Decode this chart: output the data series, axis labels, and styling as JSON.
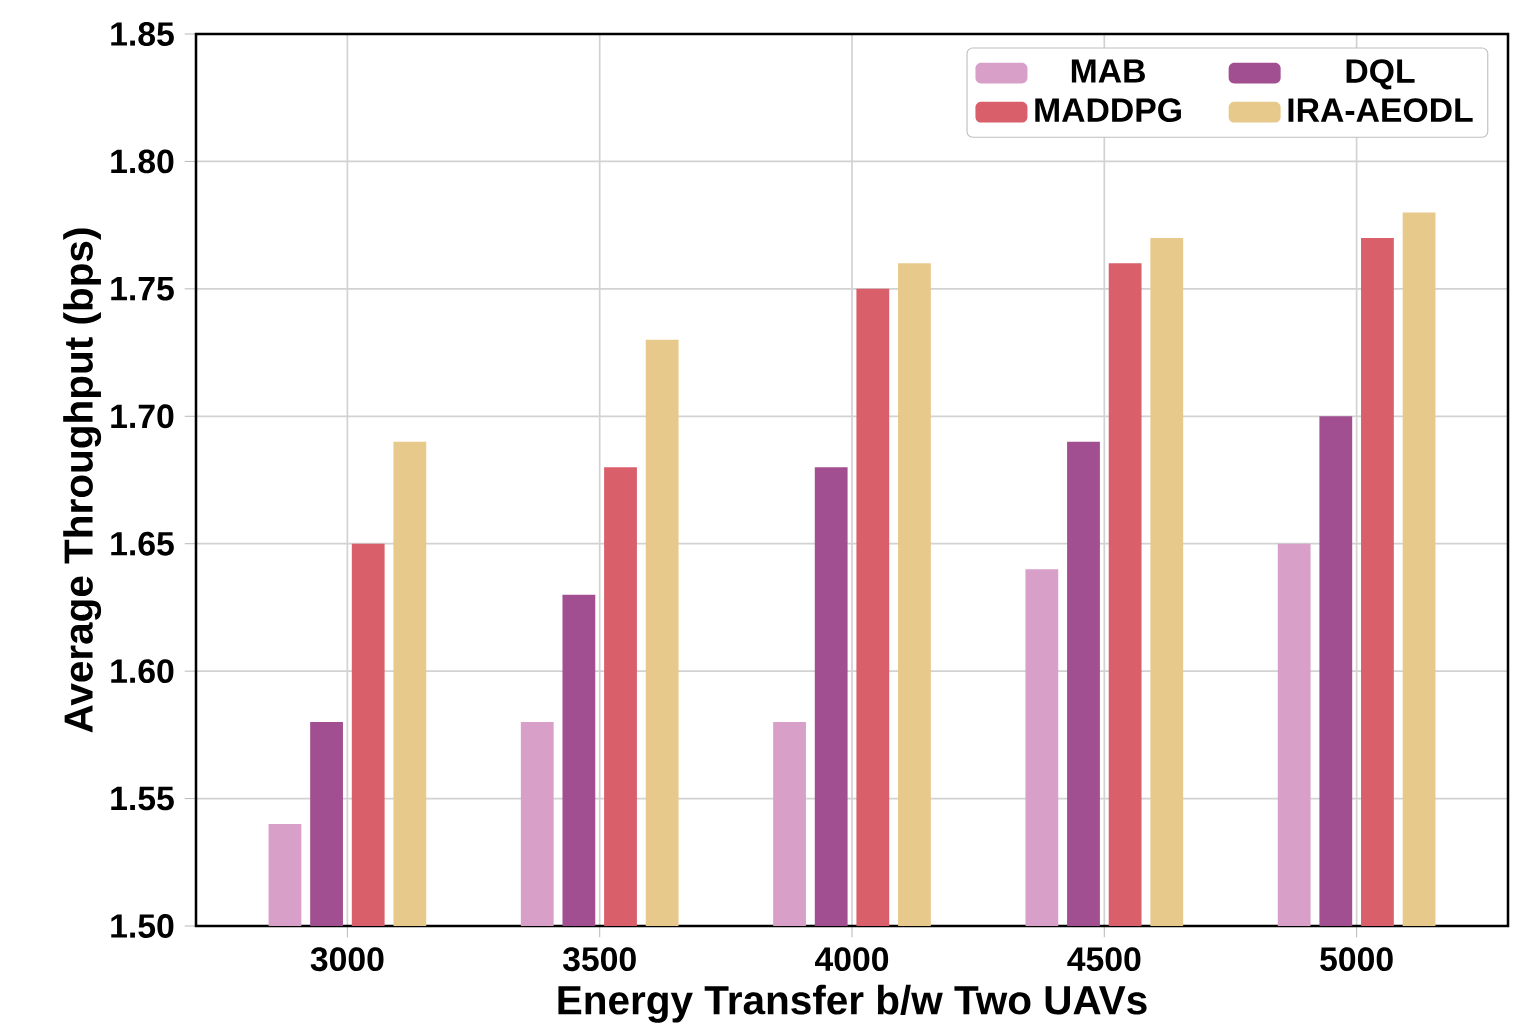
{
  "chart_data": {
    "type": "bar",
    "xlabel": "Energy Transfer b/w Two UAVs",
    "ylabel": "Average Throughput (bps)",
    "categories": [
      "3000",
      "3500",
      "4000",
      "4500",
      "5000"
    ],
    "series": [
      {
        "name": "MAB",
        "color": "#d8a0c8",
        "values": [
          1.54,
          1.58,
          1.58,
          1.64,
          1.65
        ]
      },
      {
        "name": "DQL",
        "color": "#a14f90",
        "values": [
          1.58,
          1.63,
          1.68,
          1.69,
          1.7
        ]
      },
      {
        "name": "MADDPG",
        "color": "#d95f6a",
        "values": [
          1.65,
          1.68,
          1.75,
          1.76,
          1.77
        ]
      },
      {
        "name": "IRA-AEODL",
        "color": "#e8c98c",
        "values": [
          1.69,
          1.73,
          1.76,
          1.77,
          1.78
        ]
      }
    ],
    "ylim": [
      1.5,
      1.85
    ],
    "yticks": [
      {
        "value": 1.5,
        "label": "1.50"
      },
      1.55,
      {
        "value": 1.6,
        "label": "1.60"
      },
      1.65,
      {
        "value": 1.7,
        "label": "1.70"
      },
      1.75,
      {
        "value": 1.8,
        "label": "1.80"
      },
      1.85
    ],
    "grid": true,
    "legend": "top right"
  }
}
